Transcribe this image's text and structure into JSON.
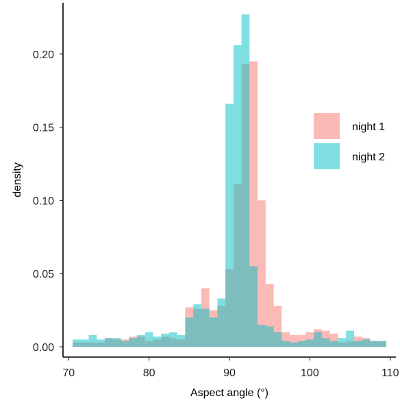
{
  "chart_data": {
    "type": "histogram",
    "xlabel": "Aspect angle (°)",
    "ylabel": "density",
    "xlim": [
      69.3,
      110.7
    ],
    "ylim": [
      -0.007,
      0.235
    ],
    "x_ticks": [
      70,
      80,
      90,
      100,
      110
    ],
    "y_ticks": [
      0.0,
      0.05,
      0.1,
      0.15,
      0.2
    ],
    "y_tick_labels": [
      "0.00",
      "0.05",
      "0.10",
      "0.15",
      "0.20"
    ],
    "grid": false,
    "legend_position": "right",
    "bin_width": 1.0,
    "bin_start": 70.5,
    "series": [
      {
        "name": "night 1",
        "color": "#F8766D",
        "values": [
          0.003,
          0.003,
          0.003,
          0.003,
          0.006,
          0.005,
          0.005,
          0.007,
          0.007,
          0.004,
          0.005,
          0.007,
          0.006,
          0.005,
          0.027,
          0.026,
          0.04,
          0.025,
          0.028,
          0.053,
          0.111,
          0.193,
          0.195,
          0.1,
          0.043,
          0.028,
          0.01,
          0.008,
          0.008,
          0.01,
          0.012,
          0.011,
          0.009,
          0.003,
          0.004,
          0.007,
          0.006,
          0.004,
          0.004
        ]
      },
      {
        "name": "night 2",
        "color": "#00BFC4",
        "values": [
          0.005,
          0.005,
          0.008,
          0.005,
          0.006,
          0.006,
          0.004,
          0.006,
          0.008,
          0.01,
          0.007,
          0.009,
          0.01,
          0.008,
          0.02,
          0.029,
          0.026,
          0.02,
          0.033,
          0.166,
          0.206,
          0.227,
          0.055,
          0.015,
          0.014,
          0.01,
          0.004,
          0.003,
          0.004,
          0.005,
          0.01,
          0.006,
          0.004,
          0.006,
          0.011,
          0.004,
          0.005,
          0.004,
          0.004
        ]
      }
    ]
  }
}
